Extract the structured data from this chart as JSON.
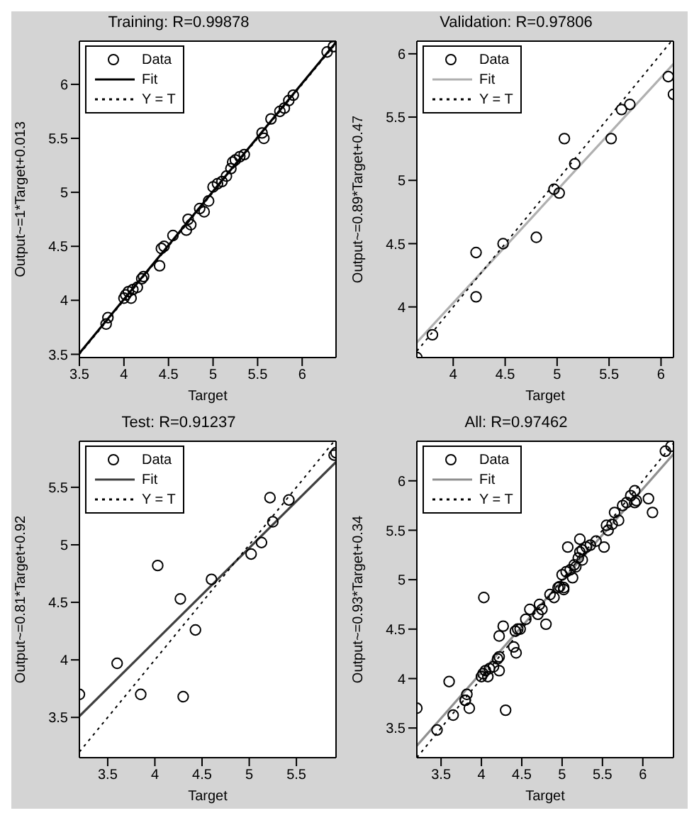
{
  "chart_data": [
    {
      "type": "scatter",
      "title": "Training: R=0.99878",
      "xlabel": "Target",
      "ylabel": "Output~=1*Target+0.013",
      "xlim": [
        3.5,
        6.38
      ],
      "ylim": [
        3.47,
        6.4
      ],
      "xticks": [
        3.5,
        4,
        4.5,
        5,
        5.5,
        6
      ],
      "yticks": [
        3.5,
        4,
        4.5,
        5,
        5.5,
        6
      ],
      "grid": false,
      "legend": "top left",
      "series": [
        {
          "name": "Data",
          "marker": "circle",
          "color": "#000000",
          "x": [
            3.8,
            3.82,
            4.0,
            4.02,
            4.05,
            4.08,
            4.1,
            4.15,
            4.2,
            4.22,
            4.4,
            4.42,
            4.45,
            4.55,
            4.7,
            4.72,
            4.75,
            4.85,
            4.9,
            4.95,
            5.0,
            5.05,
            5.1,
            5.15,
            5.2,
            5.22,
            5.25,
            5.3,
            5.35,
            5.55,
            5.57,
            5.65,
            5.75,
            5.8,
            5.85,
            5.9,
            6.28,
            6.35
          ],
          "values": [
            3.78,
            3.84,
            4.02,
            4.05,
            4.08,
            4.02,
            4.1,
            4.12,
            4.2,
            4.22,
            4.32,
            4.48,
            4.5,
            4.6,
            4.65,
            4.75,
            4.7,
            4.85,
            4.82,
            4.92,
            5.05,
            5.08,
            5.1,
            5.15,
            5.22,
            5.28,
            5.3,
            5.33,
            5.35,
            5.55,
            5.5,
            5.68,
            5.75,
            5.78,
            5.85,
            5.9,
            6.3,
            6.35
          ]
        },
        {
          "name": "Fit",
          "type": "line",
          "marker": "none",
          "line_style": "solid",
          "color": "#000000",
          "x": [
            3.5,
            6.38
          ],
          "values": [
            3.51,
            6.39
          ]
        },
        {
          "name": "Y = T",
          "type": "line",
          "marker": "none",
          "line_style": "dotted",
          "color": "#000000",
          "x": [
            3.5,
            6.38
          ],
          "values": [
            3.5,
            6.38
          ]
        }
      ]
    },
    {
      "type": "scatter",
      "title": "Validation: R=0.97806",
      "xlabel": "Target",
      "ylabel": "Output~=0.89*Target+0.47",
      "xlim": [
        3.65,
        6.12
      ],
      "ylim": [
        3.6,
        6.1
      ],
      "xticks": [
        4,
        4.5,
        5,
        5.5,
        6
      ],
      "yticks": [
        4,
        4.5,
        5,
        5.5,
        6
      ],
      "grid": false,
      "legend": "top left",
      "series": [
        {
          "name": "Data",
          "marker": "circle",
          "color": "#000000",
          "x": [
            3.65,
            3.8,
            4.22,
            4.22,
            4.48,
            4.8,
            4.97,
            5.02,
            5.07,
            5.17,
            5.52,
            5.62,
            5.7,
            6.07,
            6.12
          ],
          "values": [
            3.6,
            3.78,
            4.43,
            4.08,
            4.5,
            4.55,
            4.93,
            4.9,
            5.33,
            5.13,
            5.33,
            5.56,
            5.6,
            5.82,
            5.68
          ]
        },
        {
          "name": "Fit",
          "type": "line",
          "marker": "none",
          "line_style": "solid",
          "color": "#b0b0b0",
          "x": [
            3.65,
            6.12
          ],
          "values": [
            3.72,
            5.92
          ]
        },
        {
          "name": "Y = T",
          "type": "line",
          "marker": "none",
          "line_style": "dotted",
          "color": "#000000",
          "x": [
            3.65,
            6.1
          ],
          "values": [
            3.65,
            6.1
          ]
        }
      ]
    },
    {
      "type": "scatter",
      "title": "Test: R=0.91237",
      "xlabel": "Target",
      "ylabel": "Output~=0.81*Target+0.92",
      "xlim": [
        3.2,
        5.92
      ],
      "ylim": [
        3.15,
        5.9
      ],
      "xticks": [
        3.5,
        4,
        4.5,
        5,
        5.5
      ],
      "yticks": [
        3.5,
        4,
        4.5,
        5,
        5.5
      ],
      "grid": false,
      "legend": "top left",
      "series": [
        {
          "name": "Data",
          "marker": "circle",
          "color": "#000000",
          "x": [
            3.2,
            3.6,
            3.85,
            4.03,
            4.27,
            4.3,
            4.43,
            4.6,
            5.02,
            5.13,
            5.22,
            5.25,
            5.42,
            5.9,
            5.92
          ],
          "values": [
            3.7,
            3.97,
            3.7,
            4.82,
            4.53,
            3.68,
            4.26,
            4.7,
            4.92,
            5.02,
            5.41,
            5.2,
            5.39,
            5.78,
            5.8
          ]
        },
        {
          "name": "Fit",
          "type": "line",
          "marker": "none",
          "line_style": "solid",
          "color": "#404040",
          "x": [
            3.2,
            5.92
          ],
          "values": [
            3.51,
            5.72
          ]
        },
        {
          "name": "Y = T",
          "type": "line",
          "marker": "none",
          "line_style": "dotted",
          "color": "#000000",
          "x": [
            3.2,
            5.9
          ],
          "values": [
            3.2,
            5.9
          ]
        }
      ]
    },
    {
      "type": "scatter",
      "title": "All: R=0.97462",
      "xlabel": "Target",
      "ylabel": "Output~=0.93*Target+0.34",
      "xlim": [
        3.2,
        6.38
      ],
      "ylim": [
        3.2,
        6.4
      ],
      "xticks": [
        3.5,
        4,
        4.5,
        5,
        5.5,
        6
      ],
      "yticks": [
        3.5,
        4,
        4.5,
        5,
        5.5,
        6
      ],
      "grid": false,
      "legend": "top left",
      "series": [
        {
          "name": "Data",
          "marker": "circle",
          "color": "#000000",
          "x": [
            3.8,
            3.82,
            4.0,
            4.02,
            4.05,
            4.08,
            4.1,
            4.15,
            4.2,
            4.22,
            4.4,
            4.42,
            4.45,
            4.55,
            4.7,
            4.72,
            4.75,
            4.85,
            4.9,
            4.95,
            5.0,
            5.05,
            5.1,
            5.15,
            5.2,
            5.22,
            5.25,
            5.3,
            5.35,
            5.55,
            5.57,
            5.65,
            5.75,
            5.8,
            5.85,
            5.9,
            6.28,
            6.35,
            3.65,
            3.8,
            4.22,
            4.22,
            4.48,
            4.8,
            4.97,
            5.02,
            5.07,
            5.17,
            5.52,
            5.62,
            5.7,
            6.07,
            6.12,
            3.2,
            3.6,
            3.85,
            4.03,
            4.27,
            4.3,
            4.43,
            4.6,
            5.02,
            5.13,
            5.22,
            5.25,
            5.42,
            5.9,
            5.92,
            3.45
          ],
          "values": [
            3.78,
            3.84,
            4.02,
            4.05,
            4.08,
            4.02,
            4.1,
            4.12,
            4.2,
            4.22,
            4.32,
            4.48,
            4.5,
            4.6,
            4.65,
            4.75,
            4.7,
            4.85,
            4.82,
            4.92,
            5.05,
            5.08,
            5.1,
            5.15,
            5.22,
            5.28,
            5.3,
            5.33,
            5.35,
            5.55,
            5.5,
            5.68,
            5.75,
            5.78,
            5.85,
            5.9,
            6.3,
            6.35,
            3.63,
            3.78,
            4.43,
            4.08,
            4.5,
            4.55,
            4.93,
            4.9,
            5.33,
            5.13,
            5.33,
            5.56,
            5.6,
            5.82,
            5.68,
            3.7,
            3.97,
            3.7,
            4.82,
            4.53,
            3.68,
            4.26,
            4.7,
            4.92,
            5.02,
            5.41,
            5.2,
            5.39,
            5.78,
            5.8,
            3.48
          ]
        },
        {
          "name": "Fit",
          "type": "line",
          "marker": "none",
          "line_style": "solid",
          "color": "#909090",
          "x": [
            3.2,
            6.38
          ],
          "values": [
            3.32,
            6.27
          ]
        },
        {
          "name": "Y = T",
          "type": "line",
          "marker": "none",
          "line_style": "dotted",
          "color": "#000000",
          "x": [
            3.2,
            6.38
          ],
          "values": [
            3.2,
            6.38
          ]
        }
      ]
    }
  ]
}
